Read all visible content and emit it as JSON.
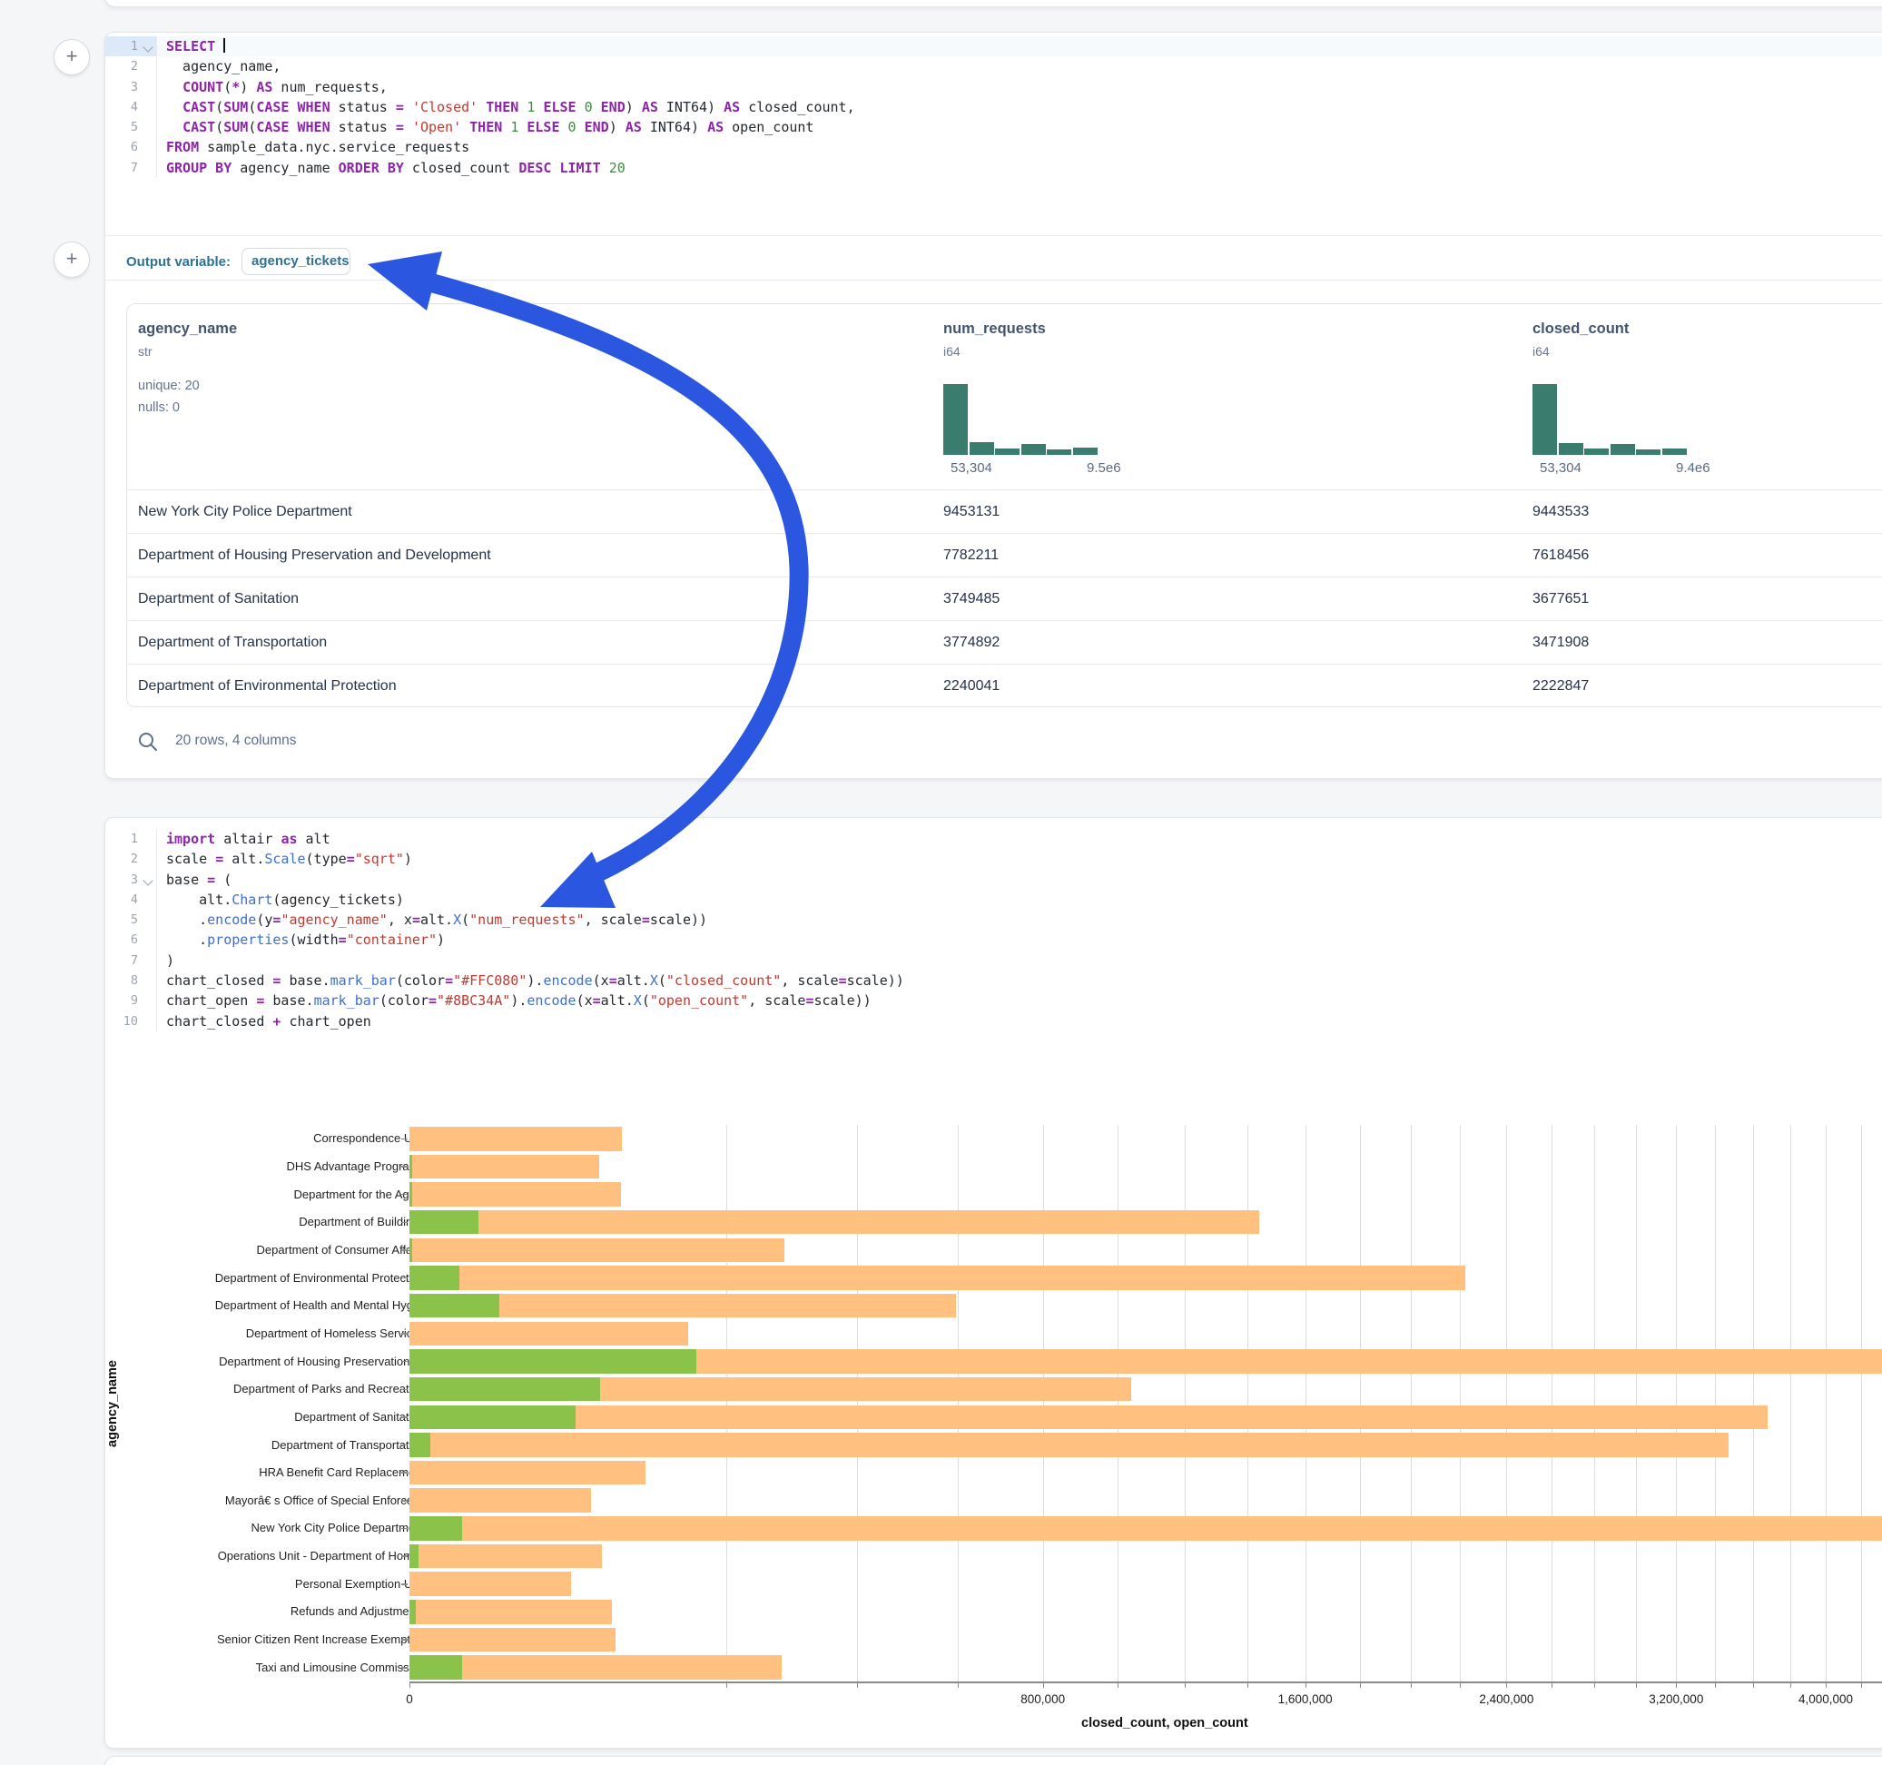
{
  "colors": {
    "bar_closed": "#FFC080",
    "bar_open": "#8BC34A",
    "histogram": "#3a7d6e",
    "arrow_blue": "#2b57e0",
    "keyword_purple": "#8e24aa",
    "string_red": "#c13a30",
    "number_green": "#3c8c40",
    "function_blue": "#3e6fd0",
    "output_teal": "#2d7296"
  },
  "plus_buttons": {
    "top": "+",
    "middle": "+"
  },
  "sql_cell": {
    "highlight_line": 1,
    "lines": [
      {
        "n": "1",
        "chevron": true,
        "tokens": [
          [
            "k",
            "SELECT"
          ],
          [
            "cur",
            ""
          ]
        ]
      },
      {
        "n": "2",
        "chevron": false,
        "tokens": [
          [
            "t",
            "  agency_name,"
          ]
        ]
      },
      {
        "n": "3",
        "chevron": false,
        "tokens": [
          [
            "t",
            "  "
          ],
          [
            "k",
            "COUNT"
          ],
          [
            "t",
            "("
          ],
          [
            "k",
            "*"
          ],
          [
            "t",
            ") "
          ],
          [
            "k",
            "AS"
          ],
          [
            "t",
            " num_requests,"
          ]
        ]
      },
      {
        "n": "4",
        "chevron": false,
        "tokens": [
          [
            "t",
            "  "
          ],
          [
            "k",
            "CAST"
          ],
          [
            "t",
            "("
          ],
          [
            "k",
            "SUM"
          ],
          [
            "t",
            "("
          ],
          [
            "k",
            "CASE"
          ],
          [
            "t",
            " "
          ],
          [
            "k",
            "WHEN"
          ],
          [
            "t",
            " status "
          ],
          [
            "k",
            "="
          ],
          [
            "t",
            " "
          ],
          [
            "s",
            "'Closed'"
          ],
          [
            "t",
            " "
          ],
          [
            "k",
            "THEN"
          ],
          [
            "t",
            " "
          ],
          [
            "n",
            "1"
          ],
          [
            "t",
            " "
          ],
          [
            "k",
            "ELSE"
          ],
          [
            "t",
            " "
          ],
          [
            "n",
            "0"
          ],
          [
            "t",
            " "
          ],
          [
            "k",
            "END"
          ],
          [
            "t",
            ") "
          ],
          [
            "k",
            "AS"
          ],
          [
            "t",
            " INT64) "
          ],
          [
            "k",
            "AS"
          ],
          [
            "t",
            " closed_count,"
          ]
        ]
      },
      {
        "n": "5",
        "chevron": false,
        "tokens": [
          [
            "t",
            "  "
          ],
          [
            "k",
            "CAST"
          ],
          [
            "t",
            "("
          ],
          [
            "k",
            "SUM"
          ],
          [
            "t",
            "("
          ],
          [
            "k",
            "CASE"
          ],
          [
            "t",
            " "
          ],
          [
            "k",
            "WHEN"
          ],
          [
            "t",
            " status "
          ],
          [
            "k",
            "="
          ],
          [
            "t",
            " "
          ],
          [
            "s",
            "'Open'"
          ],
          [
            "t",
            " "
          ],
          [
            "k",
            "THEN"
          ],
          [
            "t",
            " "
          ],
          [
            "n",
            "1"
          ],
          [
            "t",
            " "
          ],
          [
            "k",
            "ELSE"
          ],
          [
            "t",
            " "
          ],
          [
            "n",
            "0"
          ],
          [
            "t",
            " "
          ],
          [
            "k",
            "END"
          ],
          [
            "t",
            ") "
          ],
          [
            "k",
            "AS"
          ],
          [
            "t",
            " INT64) "
          ],
          [
            "k",
            "AS"
          ],
          [
            "t",
            " open_count"
          ]
        ]
      },
      {
        "n": "6",
        "chevron": false,
        "tokens": [
          [
            "k",
            "FROM"
          ],
          [
            "t",
            " sample_data.nyc.service_requests"
          ]
        ]
      },
      {
        "n": "7",
        "chevron": false,
        "tokens": [
          [
            "k",
            "GROUP BY"
          ],
          [
            "t",
            " agency_name "
          ],
          [
            "k",
            "ORDER BY"
          ],
          [
            "t",
            " closed_count "
          ],
          [
            "k",
            "DESC"
          ],
          [
            "t",
            " "
          ],
          [
            "k",
            "LIMIT"
          ],
          [
            "t",
            " "
          ],
          [
            "n",
            "20"
          ]
        ]
      }
    ],
    "output_label": "Output variable:",
    "output_variable": "agency_tickets"
  },
  "table": {
    "columns": [
      {
        "name": "agency_name",
        "type": "str",
        "meta": [
          "unique: 20",
          "nulls: 0"
        ]
      },
      {
        "name": "num_requests",
        "type": "i64",
        "hist": [
          1.0,
          0.18,
          0.09,
          0.16,
          0.08,
          0.1
        ],
        "min": "53,304",
        "max": "9.5e6"
      },
      {
        "name": "closed_count",
        "type": "i64",
        "hist": [
          1.0,
          0.17,
          0.09,
          0.16,
          0.08,
          0.09
        ],
        "min": "53,304",
        "max": "9.4e6"
      }
    ],
    "rows": [
      [
        "New York City Police Department",
        "9453131",
        "9443533"
      ],
      [
        "Department of Housing Preservation and Development",
        "7782211",
        "7618456"
      ],
      [
        "Department of Sanitation",
        "3749485",
        "3677651"
      ],
      [
        "Department of Transportation",
        "3774892",
        "3471908"
      ],
      [
        "Department of Environmental Protection",
        "2240041",
        "2222847"
      ]
    ],
    "footer": "20 rows, 4 columns"
  },
  "python_cell": {
    "chevron_line": 3,
    "lines": [
      {
        "n": "1",
        "tokens": [
          [
            "k",
            "import"
          ],
          [
            "t",
            " altair "
          ],
          [
            "k",
            "as"
          ],
          [
            "t",
            " alt"
          ]
        ]
      },
      {
        "n": "2",
        "tokens": [
          [
            "t",
            "scale "
          ],
          [
            "k",
            "="
          ],
          [
            "t",
            " alt."
          ],
          [
            "f",
            "Scale"
          ],
          [
            "t",
            "(type"
          ],
          [
            "k",
            "="
          ],
          [
            "s",
            "\"sqrt\""
          ],
          [
            "t",
            ")"
          ]
        ]
      },
      {
        "n": "3",
        "tokens": [
          [
            "t",
            "base "
          ],
          [
            "k",
            "="
          ],
          [
            "t",
            " ("
          ]
        ]
      },
      {
        "n": "4",
        "tokens": [
          [
            "t",
            "    alt."
          ],
          [
            "f",
            "Chart"
          ],
          [
            "t",
            "(agency_tickets)"
          ]
        ]
      },
      {
        "n": "5",
        "tokens": [
          [
            "t",
            "    ."
          ],
          [
            "f",
            "encode"
          ],
          [
            "t",
            "(y"
          ],
          [
            "k",
            "="
          ],
          [
            "s",
            "\"agency_name\""
          ],
          [
            "t",
            ", x"
          ],
          [
            "k",
            "="
          ],
          [
            "t",
            "alt."
          ],
          [
            "f",
            "X"
          ],
          [
            "t",
            "("
          ],
          [
            "s",
            "\"num_requests\""
          ],
          [
            "t",
            ", scale"
          ],
          [
            "k",
            "="
          ],
          [
            "t",
            "scale))"
          ]
        ]
      },
      {
        "n": "6",
        "tokens": [
          [
            "t",
            "    ."
          ],
          [
            "f",
            "properties"
          ],
          [
            "t",
            "(width"
          ],
          [
            "k",
            "="
          ],
          [
            "s",
            "\"container\""
          ],
          [
            "t",
            ")"
          ]
        ]
      },
      {
        "n": "7",
        "tokens": [
          [
            "t",
            ")"
          ]
        ]
      },
      {
        "n": "8",
        "tokens": [
          [
            "t",
            "chart_closed "
          ],
          [
            "k",
            "="
          ],
          [
            "t",
            " base."
          ],
          [
            "f",
            "mark_bar"
          ],
          [
            "t",
            "(color"
          ],
          [
            "k",
            "="
          ],
          [
            "s",
            "\"#FFC080\""
          ],
          [
            "t",
            ")."
          ],
          [
            "f",
            "encode"
          ],
          [
            "t",
            "(x"
          ],
          [
            "k",
            "="
          ],
          [
            "t",
            "alt."
          ],
          [
            "f",
            "X"
          ],
          [
            "t",
            "("
          ],
          [
            "s",
            "\"closed_count\""
          ],
          [
            "t",
            ", scale"
          ],
          [
            "k",
            "="
          ],
          [
            "t",
            "scale))"
          ]
        ]
      },
      {
        "n": "9",
        "tokens": [
          [
            "t",
            "chart_open "
          ],
          [
            "k",
            "="
          ],
          [
            "t",
            " base."
          ],
          [
            "f",
            "mark_bar"
          ],
          [
            "t",
            "(color"
          ],
          [
            "k",
            "="
          ],
          [
            "s",
            "\"#8BC34A\""
          ],
          [
            "t",
            ")."
          ],
          [
            "f",
            "encode"
          ],
          [
            "t",
            "(x"
          ],
          [
            "k",
            "="
          ],
          [
            "t",
            "alt."
          ],
          [
            "f",
            "X"
          ],
          [
            "t",
            "("
          ],
          [
            "s",
            "\"open_count\""
          ],
          [
            "t",
            ", scale"
          ],
          [
            "k",
            "="
          ],
          [
            "t",
            "scale))"
          ]
        ]
      },
      {
        "n": "10",
        "tokens": [
          [
            "t",
            "chart_closed "
          ],
          [
            "k",
            "+"
          ],
          [
            "t",
            " chart_open"
          ]
        ]
      }
    ]
  },
  "chart_data": {
    "type": "bar",
    "orientation": "horizontal",
    "scale_type": "sqrt",
    "xlabel": "closed_count, open_count",
    "ylabel": "agency_name",
    "x_tick_values": [
      0,
      800000,
      1600000,
      2400000,
      3200000,
      4000000
    ],
    "x_tick_labels": [
      "0",
      "800,000",
      "1,600,000",
      "2,400,000",
      "3,200,000",
      "4,000,000"
    ],
    "gridline_step": 200000,
    "xlim_visible": [
      0,
      4330000
    ],
    "categories": [
      "Correspondence Unit",
      "DHS Advantage Programs",
      "Department for the Aging",
      "Department of Buildings",
      "Department of Consumer Affairs",
      "Department of Environmental Protection",
      "Department of Health and Mental Hyg…",
      "Department of Homeless Services",
      "Department of Housing Preservation …",
      "Department of Parks and Recreation",
      "Department of Sanitation",
      "Department of Transportation",
      "HRA Benefit Card Replacement",
      "Mayorâ€ s Office of Special Enforce…",
      "New York City Police Department",
      "Operations Unit - Department of Hom…",
      "Personal Exemption Unit",
      "Refunds and Adjustments",
      "Senior Citizen Rent Increase Exempti…",
      "Taxi and Limousine Commission"
    ],
    "series": [
      {
        "name": "closed_count",
        "color": "#FFC080",
        "values": [
          90000,
          72000,
          89000,
          1440000,
          280000,
          2222847,
          596000,
          155000,
          7618456,
          1040000,
          3677651,
          3471908,
          111000,
          66000,
          9443533,
          74000,
          52000,
          82000,
          85000,
          276000
        ]
      },
      {
        "name": "open_count",
        "color": "#8BC34A",
        "values": [
          0,
          10,
          10,
          9500,
          10,
          5000,
          16000,
          0,
          163755,
          72500,
          55000,
          900,
          0,
          0,
          5500,
          150,
          0,
          80,
          0,
          5500
        ]
      }
    ]
  }
}
